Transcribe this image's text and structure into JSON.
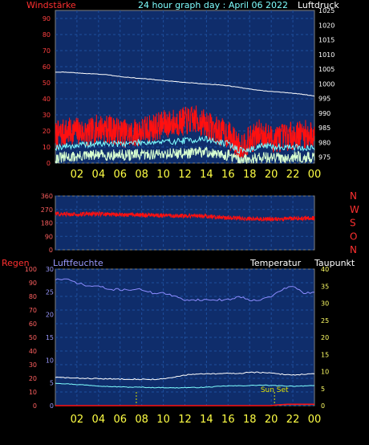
{
  "header": {
    "left_label": "Windstärke",
    "title": "24 hour graph day : April 06 2022",
    "right_label": "Luftdruck"
  },
  "colors": {
    "plot_bg": "#0f2d6b",
    "grid": "#1e4e9c",
    "frame": "#7f7f7f",
    "wind_gust": "#ff1010",
    "wind_avg": "#7fffff",
    "wind_low": "#d8ffd0",
    "pressure": "#ffffff",
    "winddir": "#ff1010",
    "rain": "#ff1010",
    "humidity": "#8c8cff",
    "temperature": "#ffffff",
    "dewpoint": "#7fffff",
    "sunset": "#e0e000",
    "x_ticks": "#ffff44",
    "left_ticks_top": "#ff4040",
    "right_ticks_top": "#ffffff",
    "dir_ticks": "#ff6060",
    "bottom_left_ticks": "#ff6060",
    "bottom_mid_ticks": "#9999ff",
    "bottom_right_ticks": "#ffff66"
  },
  "chart_data": [
    {
      "type": "line",
      "panel": "wind_pressure",
      "y_left": {
        "label": "Windstärke",
        "ylim": [
          0,
          95
        ],
        "ticks": [
          0,
          10,
          20,
          30,
          40,
          50,
          60,
          70,
          80,
          90
        ]
      },
      "y_right": {
        "label": "Luftdruck",
        "ylim": [
          973,
          1025
        ],
        "ticks": [
          975,
          980,
          985,
          990,
          995,
          1000,
          1005,
          1010,
          1015,
          1020,
          1025
        ]
      },
      "x_ticks": [
        "02",
        "04",
        "06",
        "08",
        "10",
        "12",
        "14",
        "16",
        "18",
        "20",
        "22",
        "00"
      ],
      "x_range_hours": [
        0,
        24
      ],
      "series": [
        {
          "key": "gust",
          "axis": "left",
          "x": [
            0,
            1,
            2,
            3,
            4,
            5,
            6,
            7,
            8,
            9,
            10,
            11,
            12,
            13,
            14,
            15,
            16,
            17,
            18,
            19,
            20,
            21,
            22,
            23,
            24
          ],
          "values": [
            17,
            19,
            20,
            18,
            22,
            21,
            19,
            18,
            20,
            22,
            24,
            25,
            26,
            27,
            24,
            20,
            18,
            10,
            14,
            19,
            15,
            16,
            17,
            18,
            17
          ]
        },
        {
          "key": "avg",
          "axis": "left",
          "x": [
            0,
            2,
            4,
            6,
            8,
            10,
            12,
            14,
            15,
            16,
            17,
            18,
            19,
            20,
            22,
            24
          ],
          "values": [
            10,
            11,
            12,
            12,
            13,
            13,
            14,
            15,
            13,
            12,
            8,
            8,
            11,
            10,
            10,
            9
          ]
        },
        {
          "key": "low",
          "axis": "left",
          "x": [
            0,
            2,
            4,
            6,
            8,
            10,
            12,
            14,
            15,
            16,
            17,
            18,
            19,
            20,
            22,
            24
          ],
          "values": [
            3,
            4,
            5,
            5,
            5,
            6,
            6,
            7,
            5,
            5,
            2,
            2,
            4,
            3,
            4,
            3
          ]
        },
        {
          "key": "pressure",
          "axis": "right",
          "x": [
            0,
            1,
            2,
            3,
            4,
            5,
            6,
            7,
            8,
            9,
            10,
            11,
            12,
            13,
            14,
            15,
            16,
            17,
            18,
            19,
            20,
            21,
            22,
            23,
            24
          ],
          "values": [
            1004.0,
            1004.0,
            1003.7,
            1003.5,
            1003.3,
            1003.0,
            1002.5,
            1002.1,
            1001.8,
            1001.5,
            1001.1,
            1000.8,
            1000.5,
            1000.2,
            999.9,
            999.7,
            999.3,
            998.8,
            998.2,
            997.7,
            997.4,
            997.1,
            996.8,
            996.4,
            995.8
          ]
        }
      ]
    },
    {
      "type": "line",
      "panel": "wind_direction",
      "y_left": {
        "label": "",
        "ylim": [
          0,
          360
        ],
        "ticks": [
          0,
          90,
          180,
          270,
          360
        ]
      },
      "y_right_labels": [
        "N",
        "W",
        "S",
        "O",
        "N"
      ],
      "x_ticks": [
        "02",
        "04",
        "06",
        "08",
        "10",
        "12",
        "14",
        "16",
        "18",
        "20",
        "22",
        "00"
      ],
      "x_range_hours": [
        0,
        24
      ],
      "series": [
        {
          "key": "winddir",
          "x": [
            0,
            2,
            4,
            6,
            8,
            10,
            12,
            14,
            16,
            17,
            18,
            20,
            22,
            24
          ],
          "values": [
            240,
            238,
            240,
            235,
            232,
            230,
            228,
            225,
            215,
            210,
            208,
            205,
            210,
            212
          ]
        }
      ]
    },
    {
      "type": "line",
      "panel": "rain_humidity_temp",
      "labels": {
        "rain": "Regen",
        "humidity": "Luftfeuchte",
        "temperature": "Temperatur",
        "dewpoint": "Taupunkt"
      },
      "y_rain": {
        "ylim": [
          0,
          100
        ],
        "ticks": [
          0,
          10,
          20,
          30,
          40,
          50,
          60,
          70,
          80,
          90,
          100
        ]
      },
      "y_humidity": {
        "ylim": [
          0,
          30
        ],
        "ticks": [
          0,
          5,
          10,
          15,
          20,
          25,
          30
        ]
      },
      "y_temp": {
        "ylim": [
          0,
          40
        ],
        "ticks": [
          0,
          5,
          10,
          15,
          20,
          25,
          30,
          35,
          40
        ]
      },
      "x_ticks": [
        "02",
        "04",
        "06",
        "08",
        "10",
        "12",
        "14",
        "16",
        "18",
        "20",
        "22",
        "00"
      ],
      "x_range_hours": [
        0,
        24
      ],
      "annotations": [
        {
          "text": "Sun Set",
          "x_hour": 20.3
        }
      ],
      "markers": [
        {
          "x_hour": 7.5
        },
        {
          "x_hour": 20.3
        }
      ],
      "series": [
        {
          "key": "humidity",
          "axis": "temp",
          "x": [
            0,
            1,
            2,
            3,
            4,
            5,
            6,
            7,
            8,
            9,
            10,
            11,
            12,
            13,
            14,
            15,
            16,
            17,
            18,
            19,
            20,
            21,
            22,
            23,
            24
          ],
          "values": [
            37,
            37,
            36,
            35,
            35,
            34,
            34,
            34,
            34,
            33,
            33,
            32,
            31,
            31,
            31,
            31,
            31,
            32,
            31,
            31,
            32,
            34,
            35,
            33,
            33
          ]
        },
        {
          "key": "temperature",
          "axis": "temp",
          "x": [
            0,
            1,
            2,
            3,
            4,
            5,
            6,
            7,
            8,
            9,
            10,
            11,
            12,
            13,
            14,
            15,
            16,
            17,
            18,
            19,
            20,
            21,
            22,
            23,
            24
          ],
          "values": [
            8.3,
            8.2,
            8.0,
            8.0,
            7.9,
            7.8,
            7.8,
            7.8,
            7.7,
            7.7,
            7.8,
            8.3,
            9.0,
            9.2,
            9.3,
            9.3,
            9.5,
            9.4,
            9.8,
            9.7,
            9.5,
            9.2,
            9.0,
            9.2,
            9.3
          ]
        },
        {
          "key": "dewpoint",
          "axis": "temp",
          "x": [
            0,
            1,
            2,
            3,
            4,
            5,
            6,
            7,
            8,
            9,
            10,
            11,
            12,
            13,
            14,
            15,
            16,
            17,
            18,
            19,
            20,
            21,
            22,
            23,
            24
          ],
          "values": [
            6.6,
            6.4,
            6.2,
            6.0,
            5.8,
            5.6,
            5.5,
            5.4,
            5.4,
            5.3,
            5.3,
            5.2,
            5.3,
            5.3,
            5.4,
            5.6,
            5.8,
            5.8,
            5.9,
            6.0,
            5.9,
            5.8,
            5.7,
            5.8,
            5.8
          ]
        },
        {
          "key": "rain",
          "axis": "rain",
          "x": [
            0,
            20,
            20.5,
            21.5,
            22,
            24
          ],
          "values": [
            0,
            0,
            0.5,
            1,
            1,
            1
          ]
        }
      ]
    }
  ]
}
